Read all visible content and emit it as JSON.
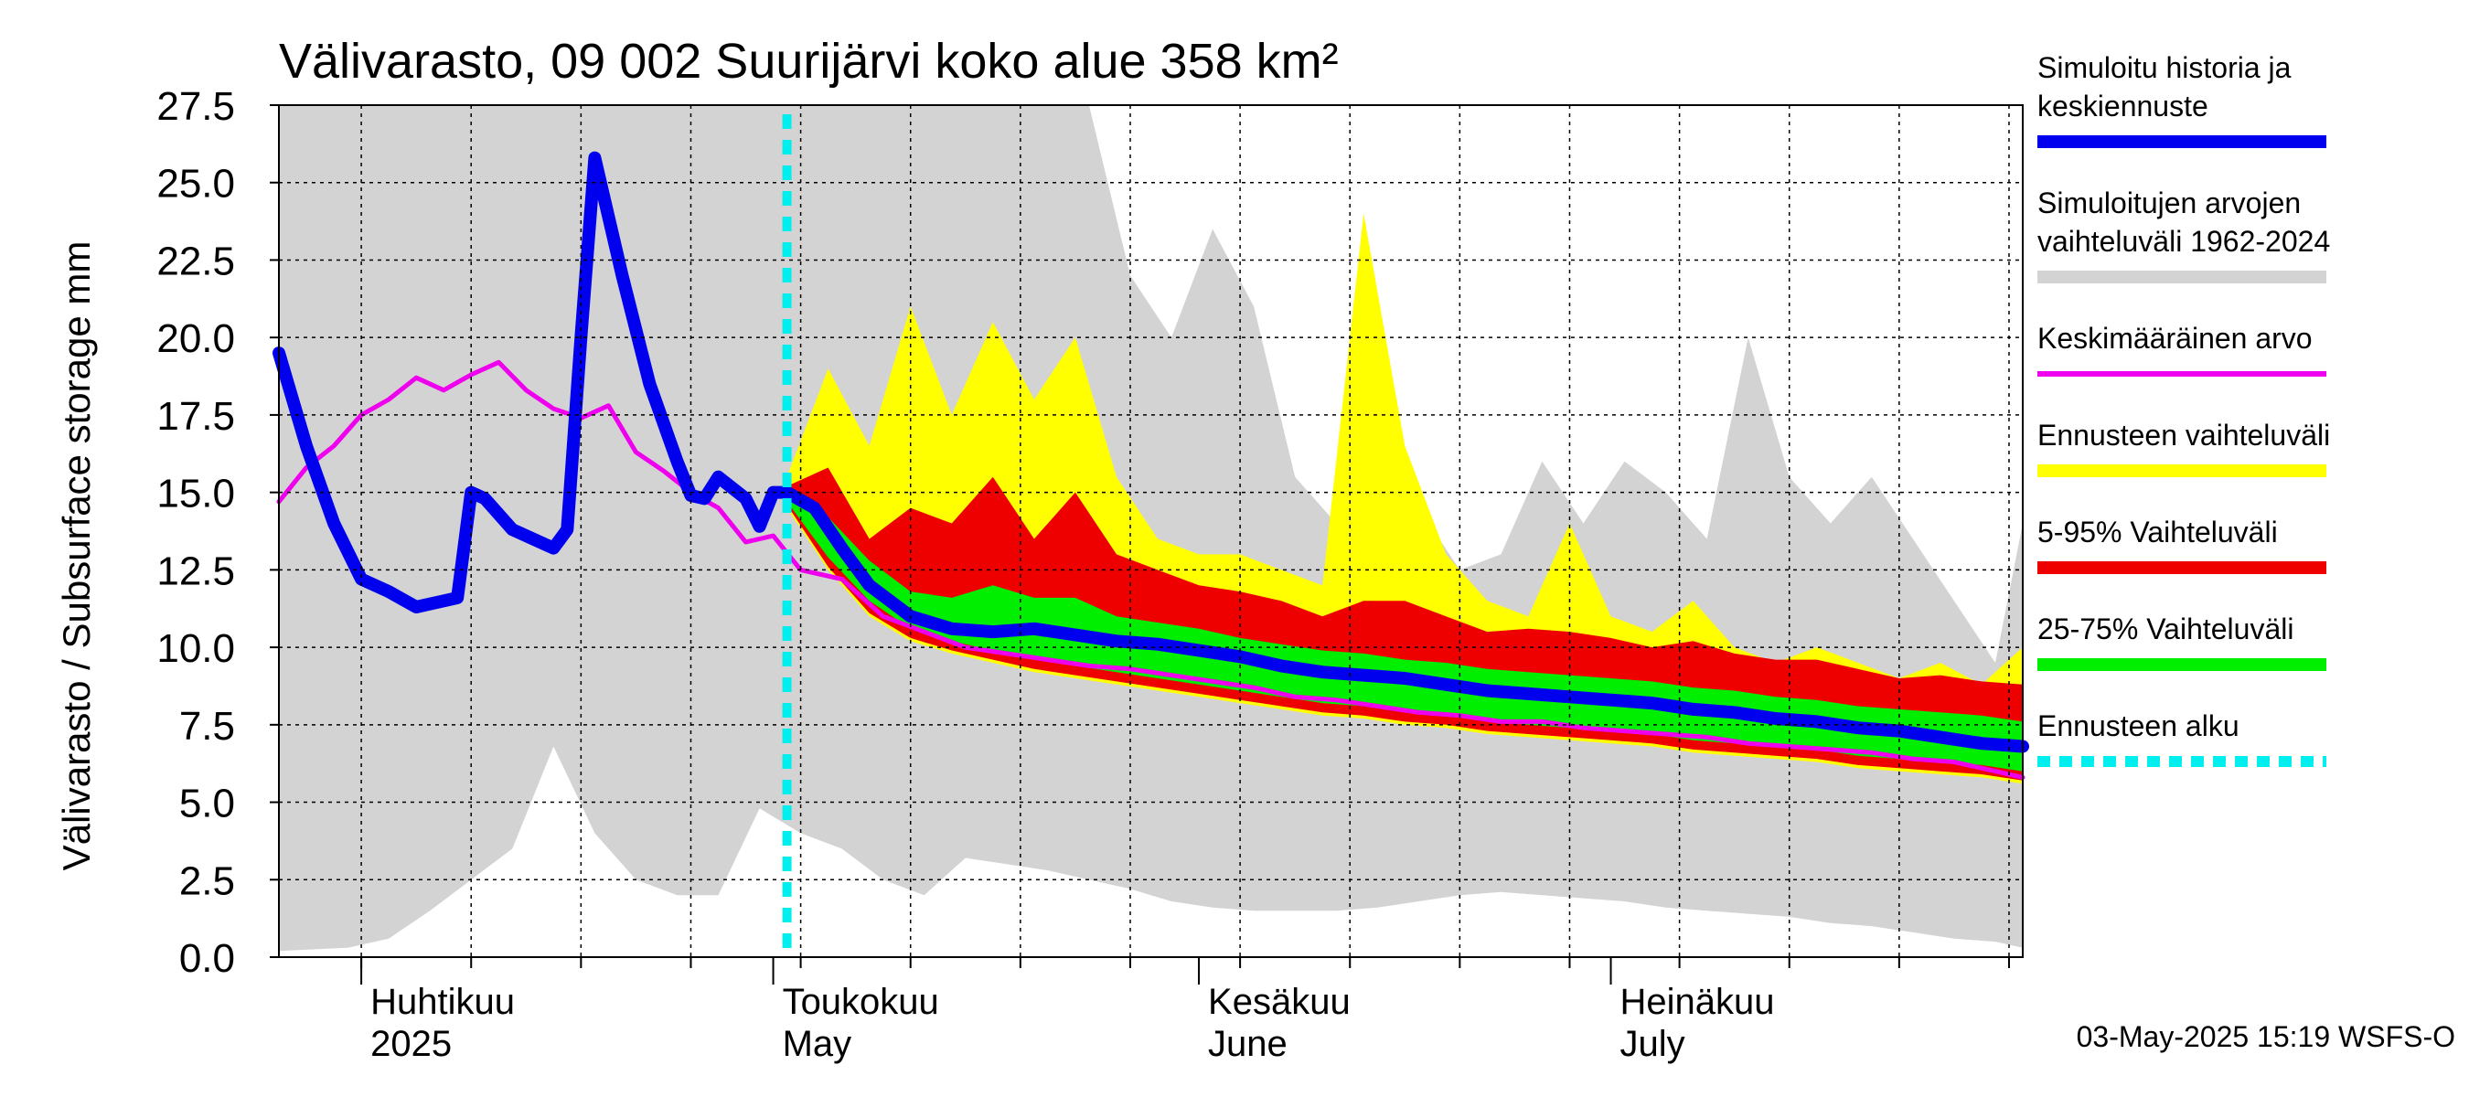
{
  "chart_data": {
    "type": "area",
    "title": "Välivarasto, 09 002 Suurijärvi koko alue 358 km²",
    "ylabel": "Välivarasto / Subsurface storage  mm",
    "ylim": [
      0,
      27.5
    ],
    "yticks": [
      "0.0",
      "2.5",
      "5.0",
      "7.5",
      "10.0",
      "12.5",
      "15.0",
      "17.5",
      "20.0",
      "22.5",
      "25.0",
      "27.5"
    ],
    "xlim": [
      "2025-03-26",
      "2025-07-31"
    ],
    "grid": true,
    "legend_position": "right",
    "forecast_start": "2025-05-02",
    "footer": "03-May-2025 15:19 WSFS-O",
    "month_labels": [
      {
        "date": "2025-04-01",
        "fi": "Huhtikuu",
        "en": "2025"
      },
      {
        "date": "2025-05-01",
        "fi": "Toukokuu",
        "en": "May"
      },
      {
        "date": "2025-06-01",
        "fi": "Kesäkuu",
        "en": "June"
      },
      {
        "date": "2025-07-01",
        "fi": "Heinäkuu",
        "en": "July"
      }
    ],
    "legend": [
      {
        "label": [
          "Simuloitu historia ja",
          "keskiennuste"
        ],
        "color": "#0000ee",
        "style": "thick"
      },
      {
        "label": [
          "Simuloitujen arvojen",
          "vaihteluväli 1962-2024"
        ],
        "color": "#d3d3d3",
        "style": "thick"
      },
      {
        "label": [
          "Keskimääräinen arvo"
        ],
        "color": "#ee00ee",
        "style": "thin"
      },
      {
        "label": [
          "Ennusteen vaihteluväli"
        ],
        "color": "#ffff00",
        "style": "thick"
      },
      {
        "label": [
          "5-95% Vaihteluväli"
        ],
        "color": "#ee0000",
        "style": "thick"
      },
      {
        "label": [
          "25-75% Vaihteluväli"
        ],
        "color": "#00ee00",
        "style": "thick"
      },
      {
        "label": [
          "Ennusteen alku"
        ],
        "color": "#00eeee",
        "style": "dashed"
      }
    ],
    "series": [
      {
        "name": "Simuloitujen arvojen vaihteluväli 1962-2024",
        "color": "#d3d3d3",
        "kind": "band",
        "x": [
          "2025-03-26",
          "2025-03-31",
          "2025-04-03",
          "2025-04-06",
          "2025-04-09",
          "2025-04-12",
          "2025-04-15",
          "2025-04-18",
          "2025-04-21",
          "2025-04-24",
          "2025-04-27",
          "2025-04-30",
          "2025-05-03",
          "2025-05-06",
          "2025-05-09",
          "2025-05-12",
          "2025-05-15",
          "2025-05-18",
          "2025-05-21",
          "2025-05-24",
          "2025-05-27",
          "2025-05-30",
          "2025-06-02",
          "2025-06-05",
          "2025-06-08",
          "2025-06-11",
          "2025-06-14",
          "2025-06-17",
          "2025-06-20",
          "2025-06-23",
          "2025-06-26",
          "2025-06-29",
          "2025-07-02",
          "2025-07-05",
          "2025-07-08",
          "2025-07-11",
          "2025-07-14",
          "2025-07-17",
          "2025-07-20",
          "2025-07-23",
          "2025-07-26",
          "2025-07-29",
          "2025-07-31"
        ],
        "low": [
          0.2,
          0.3,
          0.6,
          1.5,
          2.5,
          3.5,
          6.8,
          4.0,
          2.5,
          2.0,
          2.0,
          4.8,
          4.0,
          3.5,
          2.5,
          2.0,
          3.2,
          3.0,
          2.8,
          2.5,
          2.2,
          1.8,
          1.6,
          1.5,
          1.5,
          1.5,
          1.6,
          1.8,
          2.0,
          2.1,
          2.0,
          1.9,
          1.8,
          1.6,
          1.5,
          1.4,
          1.3,
          1.1,
          1.0,
          0.8,
          0.6,
          0.5,
          0.3
        ],
        "high": [
          27.5,
          27.5,
          27.5,
          27.5,
          27.5,
          27.5,
          27.5,
          27.5,
          27.5,
          27.5,
          27.5,
          27.5,
          27.5,
          27.5,
          27.5,
          27.5,
          27.5,
          27.5,
          27.5,
          27.5,
          22.0,
          20.0,
          23.5,
          21.0,
          15.5,
          14.0,
          13.5,
          14.5,
          12.5,
          13.0,
          16.0,
          14.0,
          16.0,
          15.0,
          13.5,
          20.0,
          15.5,
          14.0,
          15.5,
          13.5,
          11.5,
          9.5,
          14.0
        ]
      },
      {
        "name": "Ennusteen vaihteluväli",
        "color": "#ffff00",
        "kind": "band",
        "x": [
          "2025-05-02",
          "2025-05-05",
          "2025-05-08",
          "2025-05-11",
          "2025-05-14",
          "2025-05-17",
          "2025-05-20",
          "2025-05-23",
          "2025-05-26",
          "2025-05-29",
          "2025-06-01",
          "2025-06-04",
          "2025-06-07",
          "2025-06-10",
          "2025-06-13",
          "2025-06-16",
          "2025-06-19",
          "2025-06-22",
          "2025-06-25",
          "2025-06-28",
          "2025-07-01",
          "2025-07-04",
          "2025-07-07",
          "2025-07-10",
          "2025-07-13",
          "2025-07-16",
          "2025-07-19",
          "2025-07-22",
          "2025-07-25",
          "2025-07-28",
          "2025-07-31"
        ],
        "low": [
          14.5,
          12.5,
          11.0,
          10.2,
          9.8,
          9.5,
          9.2,
          9.0,
          8.8,
          8.6,
          8.4,
          8.2,
          8.0,
          7.8,
          7.7,
          7.5,
          7.4,
          7.2,
          7.1,
          7.0,
          6.9,
          6.8,
          6.6,
          6.5,
          6.4,
          6.3,
          6.1,
          6.0,
          5.9,
          5.8,
          5.6
        ],
        "high": [
          15.5,
          19.0,
          16.5,
          21.0,
          17.5,
          20.5,
          18.0,
          20.0,
          15.5,
          13.5,
          13.0,
          13.0,
          12.5,
          12.0,
          24.0,
          16.5,
          13.0,
          11.5,
          11.0,
          14.0,
          11.0,
          10.5,
          11.5,
          10.0,
          9.5,
          10.0,
          9.5,
          9.0,
          9.5,
          8.8,
          10.0
        ]
      },
      {
        "name": "5-95% Vaihteluväli",
        "color": "#ee0000",
        "kind": "band",
        "x": [
          "2025-05-02",
          "2025-05-05",
          "2025-05-08",
          "2025-05-11",
          "2025-05-14",
          "2025-05-17",
          "2025-05-20",
          "2025-05-23",
          "2025-05-26",
          "2025-05-29",
          "2025-06-01",
          "2025-06-04",
          "2025-06-07",
          "2025-06-10",
          "2025-06-13",
          "2025-06-16",
          "2025-06-19",
          "2025-06-22",
          "2025-06-25",
          "2025-06-28",
          "2025-07-01",
          "2025-07-04",
          "2025-07-07",
          "2025-07-10",
          "2025-07-13",
          "2025-07-16",
          "2025-07-19",
          "2025-07-22",
          "2025-07-25",
          "2025-07-28",
          "2025-07-31"
        ],
        "low": [
          14.6,
          12.6,
          11.1,
          10.3,
          9.9,
          9.6,
          9.3,
          9.1,
          8.9,
          8.7,
          8.5,
          8.3,
          8.1,
          7.9,
          7.8,
          7.6,
          7.5,
          7.3,
          7.2,
          7.1,
          7.0,
          6.9,
          6.7,
          6.6,
          6.5,
          6.4,
          6.2,
          6.1,
          6.0,
          5.9,
          5.7
        ],
        "high": [
          15.2,
          15.8,
          13.5,
          14.5,
          14.0,
          15.5,
          13.5,
          15.0,
          13.0,
          12.5,
          12.0,
          11.8,
          11.5,
          11.0,
          11.5,
          11.5,
          11.0,
          10.5,
          10.6,
          10.5,
          10.3,
          10.0,
          10.2,
          9.8,
          9.6,
          9.6,
          9.3,
          9.0,
          9.1,
          8.9,
          8.8
        ]
      },
      {
        "name": "25-75% Vaihteluväli",
        "color": "#00ee00",
        "kind": "band",
        "x": [
          "2025-05-02",
          "2025-05-05",
          "2025-05-08",
          "2025-05-11",
          "2025-05-14",
          "2025-05-17",
          "2025-05-20",
          "2025-05-23",
          "2025-05-26",
          "2025-05-29",
          "2025-06-01",
          "2025-06-04",
          "2025-06-07",
          "2025-06-10",
          "2025-06-13",
          "2025-06-16",
          "2025-06-19",
          "2025-06-22",
          "2025-06-25",
          "2025-06-28",
          "2025-07-01",
          "2025-07-04",
          "2025-07-07",
          "2025-07-10",
          "2025-07-13",
          "2025-07-16",
          "2025-07-19",
          "2025-07-22",
          "2025-07-25",
          "2025-07-28",
          "2025-07-31"
        ],
        "low": [
          14.7,
          12.9,
          11.5,
          10.6,
          10.2,
          9.9,
          9.6,
          9.4,
          9.2,
          9.0,
          8.8,
          8.6,
          8.4,
          8.2,
          8.1,
          7.9,
          7.8,
          7.6,
          7.5,
          7.4,
          7.3,
          7.2,
          7.0,
          6.9,
          6.8,
          6.7,
          6.5,
          6.4,
          6.3,
          6.2,
          6.0
        ],
        "high": [
          14.9,
          14.2,
          12.8,
          11.8,
          11.6,
          12.0,
          11.6,
          11.6,
          11.0,
          10.8,
          10.6,
          10.3,
          10.1,
          9.9,
          9.8,
          9.6,
          9.5,
          9.3,
          9.2,
          9.1,
          9.0,
          8.9,
          8.7,
          8.6,
          8.4,
          8.3,
          8.1,
          8.0,
          7.9,
          7.8,
          7.6
        ]
      },
      {
        "name": "Keskimääräinen arvo",
        "color": "#ee00ee",
        "kind": "line",
        "x": [
          "2025-03-26",
          "2025-03-28",
          "2025-03-30",
          "2025-04-01",
          "2025-04-03",
          "2025-04-05",
          "2025-04-07",
          "2025-04-09",
          "2025-04-11",
          "2025-04-13",
          "2025-04-15",
          "2025-04-17",
          "2025-04-19",
          "2025-04-21",
          "2025-04-23",
          "2025-04-25",
          "2025-04-27",
          "2025-04-29",
          "2025-05-01",
          "2025-05-03",
          "2025-05-06",
          "2025-05-09",
          "2025-05-12",
          "2025-05-15",
          "2025-05-18",
          "2025-05-21",
          "2025-05-24",
          "2025-05-27",
          "2025-05-30",
          "2025-06-02",
          "2025-06-05",
          "2025-06-08",
          "2025-06-11",
          "2025-06-14",
          "2025-06-17",
          "2025-06-20",
          "2025-06-23",
          "2025-06-26",
          "2025-06-29",
          "2025-07-02",
          "2025-07-05",
          "2025-07-08",
          "2025-07-11",
          "2025-07-14",
          "2025-07-17",
          "2025-07-20",
          "2025-07-23",
          "2025-07-26",
          "2025-07-29",
          "2025-07-31"
        ],
        "y": [
          14.7,
          15.8,
          16.5,
          17.5,
          18.0,
          18.7,
          18.3,
          18.8,
          19.2,
          18.3,
          17.7,
          17.4,
          17.8,
          16.3,
          15.7,
          15.0,
          14.5,
          13.4,
          13.6,
          12.5,
          12.2,
          11.0,
          10.5,
          10.0,
          9.8,
          9.6,
          9.4,
          9.3,
          9.1,
          8.9,
          8.7,
          8.4,
          8.3,
          8.1,
          7.9,
          7.8,
          7.6,
          7.6,
          7.4,
          7.3,
          7.2,
          7.1,
          6.9,
          6.8,
          6.7,
          6.6,
          6.4,
          6.3,
          6.0,
          5.8
        ]
      },
      {
        "name": "Simuloitu historia ja keskiennuste",
        "color": "#0000ee",
        "kind": "line",
        "x": [
          "2025-03-26",
          "2025-03-28",
          "2025-03-30",
          "2025-04-01",
          "2025-04-03",
          "2025-04-05",
          "2025-04-07",
          "2025-04-08",
          "2025-04-09",
          "2025-04-10",
          "2025-04-12",
          "2025-04-14",
          "2025-04-15",
          "2025-04-16",
          "2025-04-17",
          "2025-04-18",
          "2025-04-20",
          "2025-04-22",
          "2025-04-24",
          "2025-04-25",
          "2025-04-26",
          "2025-04-27",
          "2025-04-29",
          "2025-04-30",
          "2025-05-01",
          "2025-05-02",
          "2025-05-04",
          "2025-05-06",
          "2025-05-08",
          "2025-05-11",
          "2025-05-14",
          "2025-05-17",
          "2025-05-20",
          "2025-05-23",
          "2025-05-26",
          "2025-05-29",
          "2025-06-01",
          "2025-06-04",
          "2025-06-07",
          "2025-06-10",
          "2025-06-13",
          "2025-06-16",
          "2025-06-19",
          "2025-06-22",
          "2025-06-25",
          "2025-06-28",
          "2025-07-01",
          "2025-07-04",
          "2025-07-07",
          "2025-07-10",
          "2025-07-13",
          "2025-07-16",
          "2025-07-19",
          "2025-07-22",
          "2025-07-25",
          "2025-07-28",
          "2025-07-31"
        ],
        "y": [
          19.5,
          16.5,
          14.0,
          12.2,
          11.8,
          11.3,
          11.5,
          11.6,
          15.0,
          14.8,
          13.8,
          13.4,
          13.2,
          13.8,
          20.0,
          25.8,
          22.0,
          18.5,
          16.0,
          14.9,
          14.8,
          15.5,
          14.8,
          13.9,
          15.0,
          15.0,
          14.5,
          13.2,
          12.0,
          11.0,
          10.6,
          10.5,
          10.6,
          10.4,
          10.2,
          10.1,
          9.9,
          9.7,
          9.4,
          9.2,
          9.1,
          9.0,
          8.8,
          8.6,
          8.5,
          8.4,
          8.3,
          8.2,
          8.0,
          7.9,
          7.7,
          7.6,
          7.4,
          7.3,
          7.1,
          6.9,
          6.8
        ]
      }
    ]
  }
}
